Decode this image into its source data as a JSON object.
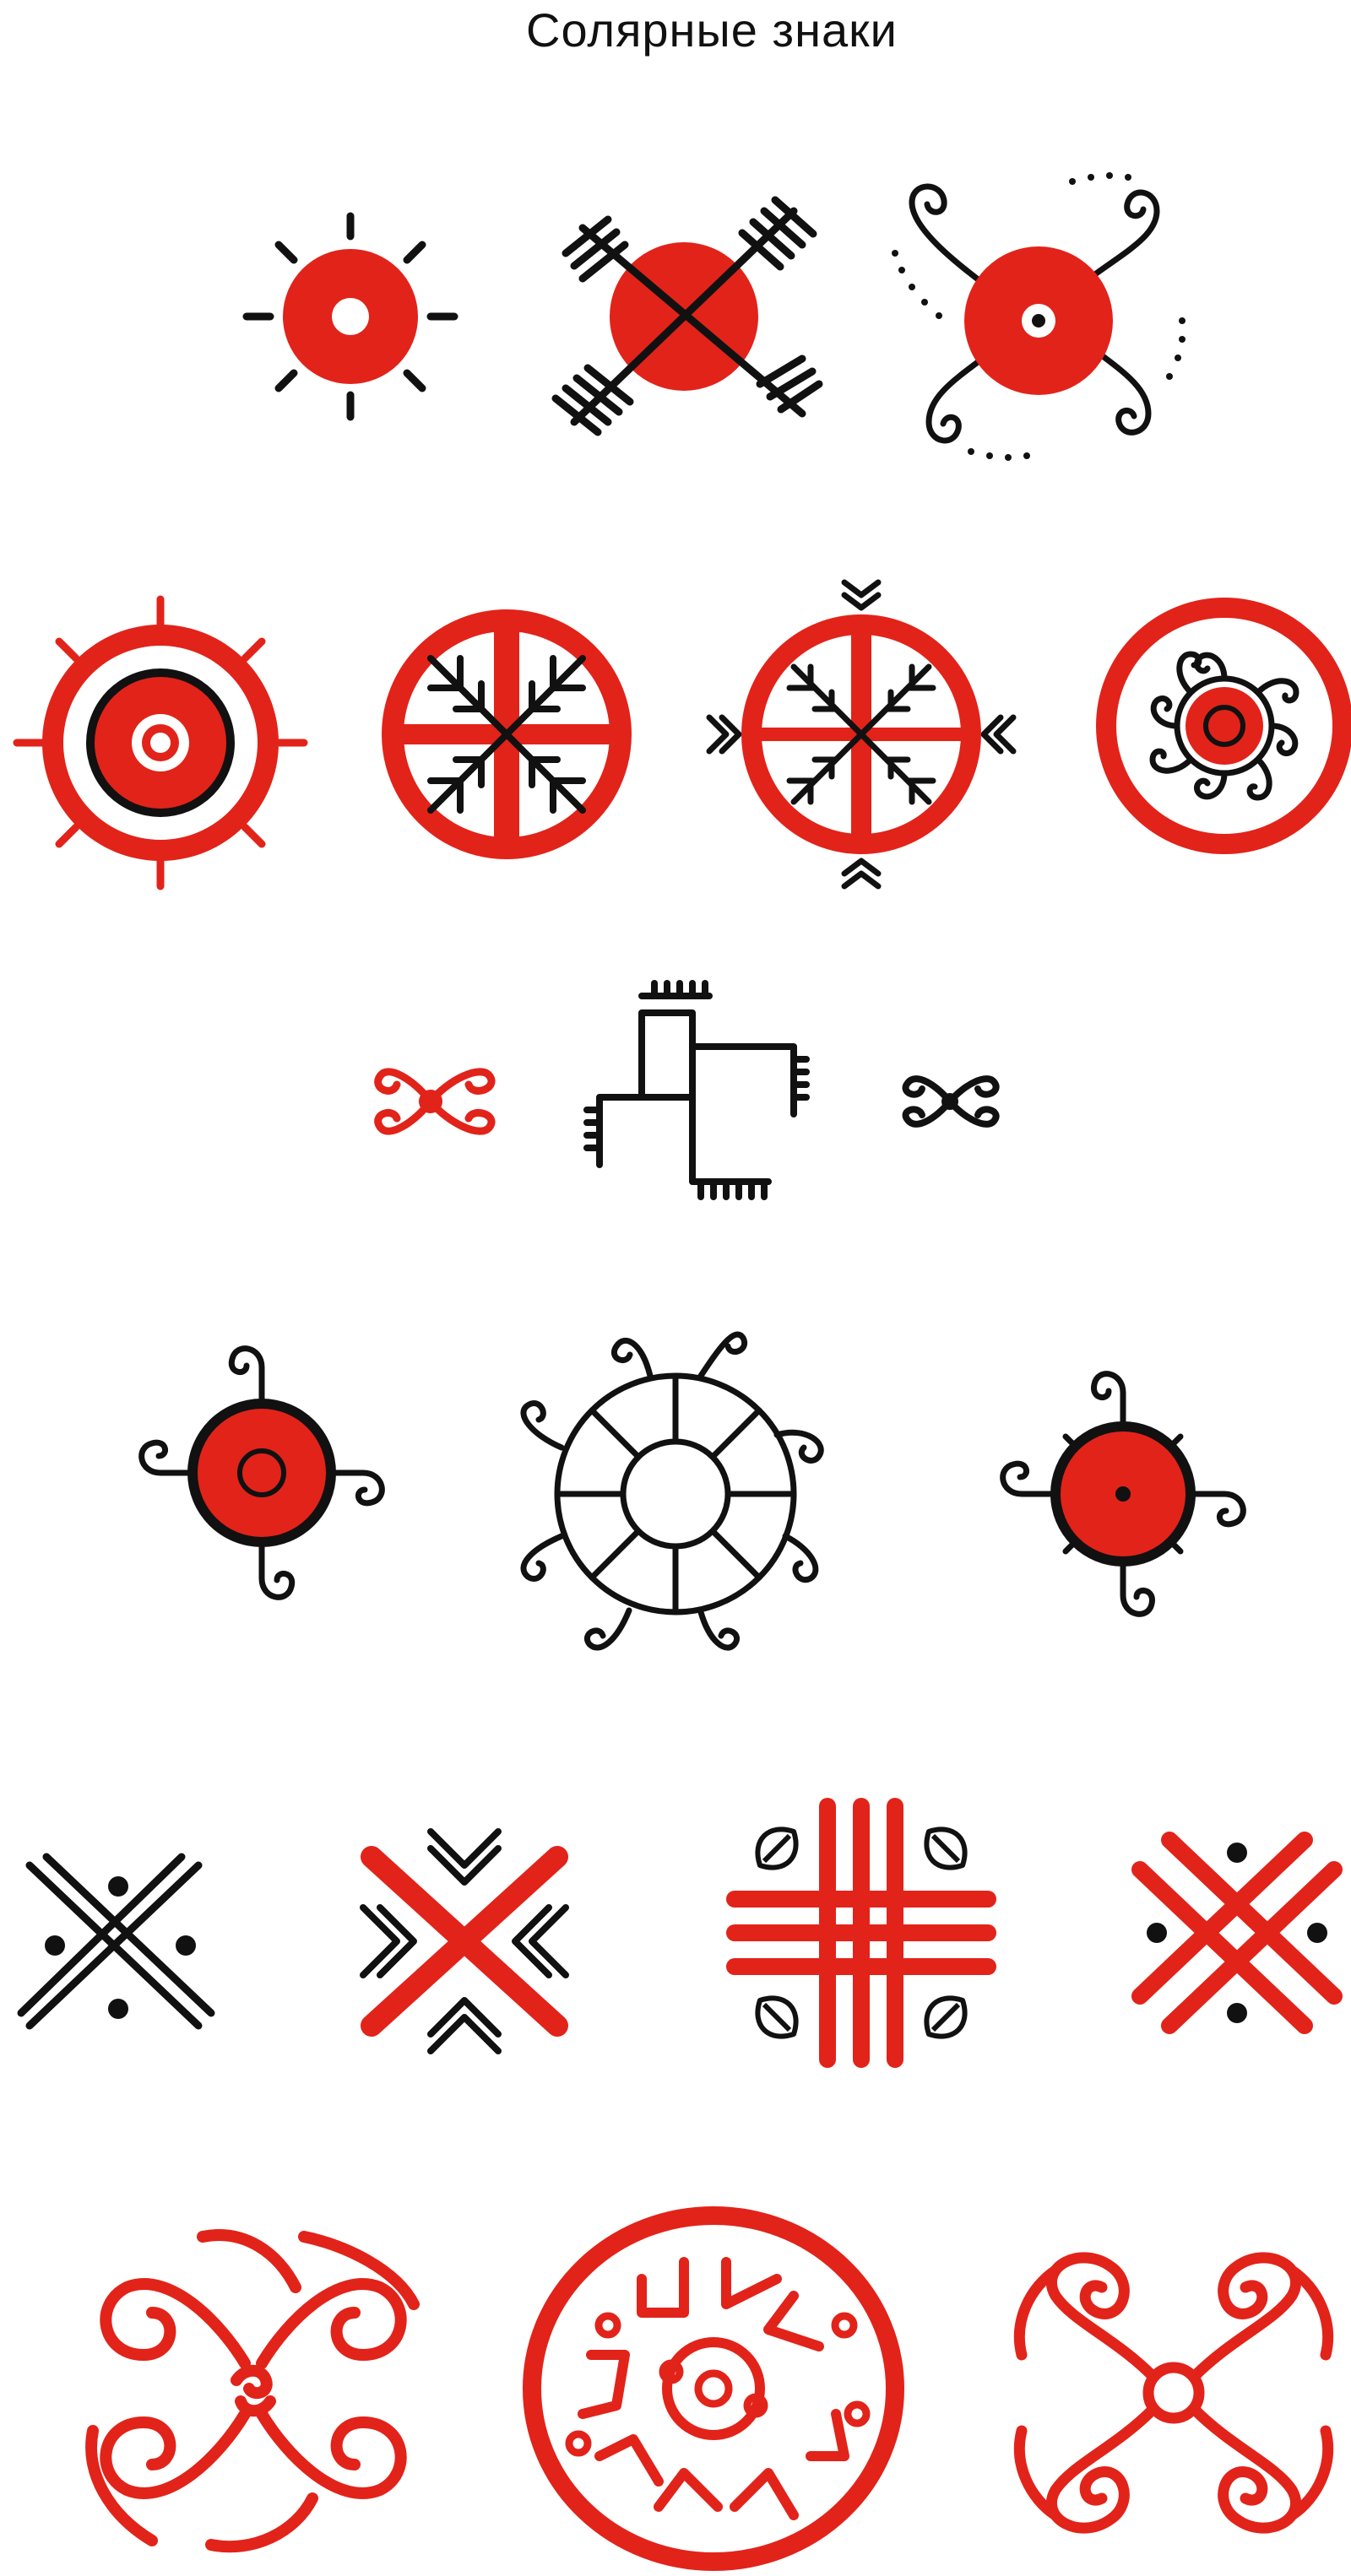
{
  "title": "Солярные знаки",
  "colors": {
    "red": "#e2231a",
    "black": "#111111",
    "background": "#ffffff"
  }
}
